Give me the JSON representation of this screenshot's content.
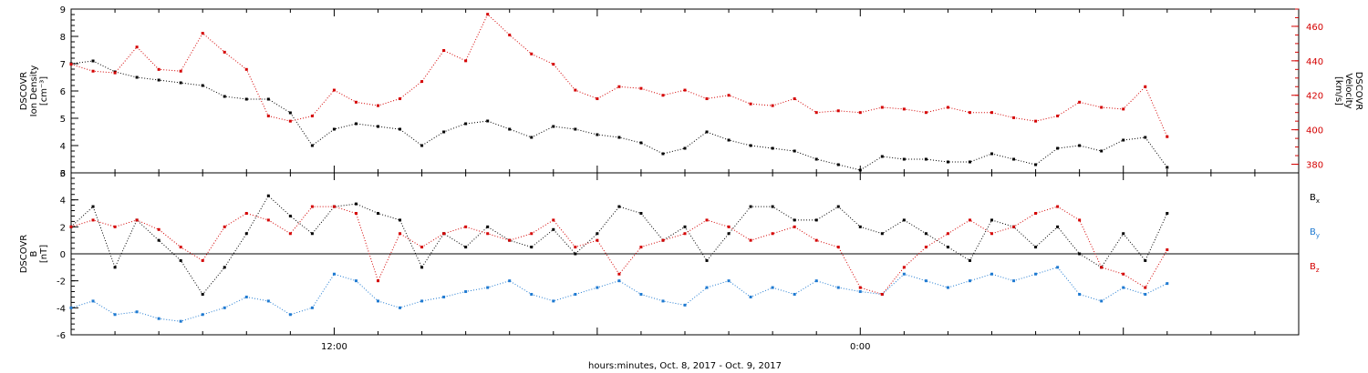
{
  "chart_data": [
    {
      "type": "scatter",
      "panel": "plasma",
      "ylabel": [
        "DSCOVR",
        "Ion Density",
        "[cm⁻³]"
      ],
      "ylim": [
        3,
        9
      ],
      "yticks": [
        "3",
        "4",
        "5",
        "6",
        "7",
        "8",
        "9"
      ],
      "y2label": [
        "DSCOVR",
        "Velocity",
        "[km/s]"
      ],
      "y2lim": [
        375,
        470
      ],
      "y2ticks": [
        "380",
        "400",
        "420",
        "440",
        "460"
      ],
      "xlim_hours": [
        0,
        28
      ],
      "series": [
        {
          "axis": "left",
          "color": "#000000",
          "x": [
            0.0,
            0.5,
            1.0,
            1.5,
            2.0,
            2.5,
            3.0,
            3.5,
            4.0,
            4.5,
            5.0,
            5.5,
            6.0,
            6.5,
            7.0,
            7.5,
            8.0,
            8.5,
            9.0,
            9.5,
            10.0,
            10.5,
            11.0,
            11.5,
            12.0,
            12.5,
            13.0,
            13.5,
            14.0,
            14.5,
            15.0,
            15.5,
            16.0,
            16.5,
            17.0,
            17.5,
            18.0,
            18.5,
            19.0,
            19.5,
            20.0,
            20.5,
            21.0,
            21.5,
            22.0,
            22.5,
            23.0,
            23.5,
            24.0,
            24.5,
            25.0
          ],
          "y": [
            7.0,
            7.1,
            6.7,
            6.5,
            6.4,
            6.3,
            6.2,
            5.8,
            5.7,
            5.7,
            5.2,
            4.0,
            4.6,
            4.8,
            4.7,
            4.6,
            4.0,
            4.5,
            4.8,
            4.9,
            4.6,
            4.3,
            4.7,
            4.6,
            4.4,
            4.3,
            4.1,
            3.7,
            3.9,
            4.5,
            4.2,
            4.0,
            3.9,
            3.8,
            3.5,
            3.3,
            3.1,
            3.6,
            3.5,
            3.5,
            3.4,
            3.4,
            3.7,
            3.5,
            3.3,
            3.9,
            4.0,
            3.8,
            4.2,
            4.3,
            3.2
          ]
        },
        {
          "axis": "right",
          "color": "#d40000",
          "x": [
            0.0,
            0.5,
            1.0,
            1.5,
            2.0,
            2.5,
            3.0,
            3.5,
            4.0,
            4.5,
            5.0,
            5.5,
            6.0,
            6.5,
            7.0,
            7.5,
            8.0,
            8.5,
            9.0,
            9.5,
            10.0,
            10.5,
            11.0,
            11.5,
            12.0,
            12.5,
            13.0,
            13.5,
            14.0,
            14.5,
            15.0,
            15.5,
            16.0,
            16.5,
            17.0,
            17.5,
            18.0,
            18.5,
            19.0,
            19.5,
            20.0,
            20.5,
            21.0,
            21.5,
            22.0,
            22.5,
            23.0,
            23.5,
            24.0,
            24.5,
            25.0
          ],
          "y": [
            438,
            434,
            433,
            448,
            435,
            434,
            456,
            445,
            435,
            408,
            405,
            408,
            423,
            416,
            414,
            418,
            428,
            446,
            440,
            467,
            455,
            444,
            438,
            423,
            418,
            425,
            424,
            420,
            423,
            418,
            420,
            415,
            414,
            418,
            410,
            411,
            410,
            413,
            412,
            410,
            413,
            410,
            410,
            407,
            405,
            408,
            416,
            413,
            412,
            425,
            396
          ]
        }
      ]
    },
    {
      "type": "scatter",
      "panel": "magnetic",
      "ylabel": [
        "DSCOVR",
        "B",
        "[nT]"
      ],
      "ylim": [
        -6,
        6
      ],
      "yticks": [
        "-6",
        "-4",
        "-2",
        "0",
        "2",
        "4",
        "6"
      ],
      "xlim_hours": [
        0,
        28
      ],
      "xticks": [
        "12:00",
        "0:00"
      ],
      "xtick_hours": [
        6,
        18
      ],
      "xlabel": "hours:minutes, Oct.  8, 2017 - Oct.  9, 2017",
      "legend": [
        {
          "label": "B",
          "sub": "x",
          "color": "#000000"
        },
        {
          "label": "B",
          "sub": "y",
          "color": "#1f7ad1"
        },
        {
          "label": "B",
          "sub": "z",
          "color": "#d40000"
        }
      ],
      "series": [
        {
          "name": "Bx",
          "color": "#000000",
          "x": [
            0.0,
            0.5,
            1.0,
            1.5,
            2.0,
            2.5,
            3.0,
            3.5,
            4.0,
            4.5,
            5.0,
            5.5,
            6.0,
            6.5,
            7.0,
            7.5,
            8.0,
            8.5,
            9.0,
            9.5,
            10.0,
            10.5,
            11.0,
            11.5,
            12.0,
            12.5,
            13.0,
            13.5,
            14.0,
            14.5,
            15.0,
            15.5,
            16.0,
            16.5,
            17.0,
            17.5,
            18.0,
            18.5,
            19.0,
            19.5,
            20.0,
            20.5,
            21.0,
            21.5,
            22.0,
            22.5,
            23.0,
            23.5,
            24.0,
            24.5,
            25.0
          ],
          "y": [
            2.0,
            3.5,
            -1.0,
            2.5,
            1.0,
            -0.5,
            -3.0,
            -1.0,
            1.5,
            4.3,
            2.8,
            1.5,
            3.5,
            3.7,
            3.0,
            2.5,
            -1.0,
            1.5,
            0.5,
            2.0,
            1.0,
            0.5,
            1.8,
            0.0,
            1.5,
            3.5,
            3.0,
            1.0,
            2.0,
            -0.5,
            1.5,
            3.5,
            3.5,
            2.5,
            2.5,
            3.5,
            2.0,
            1.5,
            2.5,
            1.5,
            0.5,
            -0.5,
            2.5,
            2.0,
            0.5,
            2.0,
            0.0,
            -1.0,
            1.5,
            -0.5,
            3.0
          ]
        },
        {
          "name": "By",
          "color": "#1f7ad1",
          "x": [
            0.0,
            0.5,
            1.0,
            1.5,
            2.0,
            2.5,
            3.0,
            3.5,
            4.0,
            4.5,
            5.0,
            5.5,
            6.0,
            6.5,
            7.0,
            7.5,
            8.0,
            8.5,
            9.0,
            9.5,
            10.0,
            10.5,
            11.0,
            11.5,
            12.0,
            12.5,
            13.0,
            13.5,
            14.0,
            14.5,
            15.0,
            15.5,
            16.0,
            16.5,
            17.0,
            17.5,
            18.0,
            18.5,
            19.0,
            19.5,
            20.0,
            20.5,
            21.0,
            21.5,
            22.0,
            22.5,
            23.0,
            23.5,
            24.0,
            24.5,
            25.0
          ],
          "y": [
            -4.0,
            -3.5,
            -4.5,
            -4.3,
            -4.8,
            -5.0,
            -4.5,
            -4.0,
            -3.2,
            -3.5,
            -4.5,
            -4.0,
            -1.5,
            -2.0,
            -3.5,
            -4.0,
            -3.5,
            -3.2,
            -2.8,
            -2.5,
            -2.0,
            -3.0,
            -3.5,
            -3.0,
            -2.5,
            -2.0,
            -3.0,
            -3.5,
            -3.8,
            -2.5,
            -2.0,
            -3.2,
            -2.5,
            -3.0,
            -2.0,
            -2.5,
            -2.8,
            -3.0,
            -1.5,
            -2.0,
            -2.5,
            -2.0,
            -1.5,
            -2.0,
            -1.5,
            -1.0,
            -3.0,
            -3.5,
            -2.5,
            -3.0,
            -2.2
          ]
        },
        {
          "name": "Bz",
          "color": "#d40000",
          "x": [
            0.0,
            0.5,
            1.0,
            1.5,
            2.0,
            2.5,
            3.0,
            3.5,
            4.0,
            4.5,
            5.0,
            5.5,
            6.0,
            6.5,
            7.0,
            7.5,
            8.0,
            8.5,
            9.0,
            9.5,
            10.0,
            10.5,
            11.0,
            11.5,
            12.0,
            12.5,
            13.0,
            13.5,
            14.0,
            14.5,
            15.0,
            15.5,
            16.0,
            16.5,
            17.0,
            17.5,
            18.0,
            18.5,
            19.0,
            19.5,
            20.0,
            20.5,
            21.0,
            21.5,
            22.0,
            22.5,
            23.0,
            23.5,
            24.0,
            24.5,
            25.0
          ],
          "y": [
            2.0,
            2.5,
            2.0,
            2.5,
            1.8,
            0.5,
            -0.5,
            2.0,
            3.0,
            2.5,
            1.5,
            3.5,
            3.5,
            3.0,
            -2.0,
            1.5,
            0.5,
            1.5,
            2.0,
            1.5,
            1.0,
            1.5,
            2.5,
            0.5,
            1.0,
            -1.5,
            0.5,
            1.0,
            1.5,
            2.5,
            2.0,
            1.0,
            1.5,
            2.0,
            1.0,
            0.5,
            -2.5,
            -3.0,
            -1.0,
            0.5,
            1.5,
            2.5,
            1.5,
            2.0,
            3.0,
            3.5,
            2.5,
            -1.0,
            -1.5,
            -2.5,
            0.3
          ]
        }
      ]
    }
  ]
}
